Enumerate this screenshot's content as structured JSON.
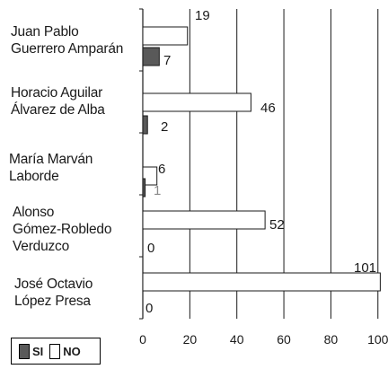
{
  "chart_data": {
    "type": "bar",
    "orientation": "horizontal",
    "categories": [
      [
        "Juan Pablo",
        "Guerrero Amparán"
      ],
      [
        "Horacio Aguilar",
        "Álvarez de Alba"
      ],
      [
        "María Marván",
        "Laborde"
      ],
      [
        "Alonso",
        "Gómez-Robledo",
        "Verduzco"
      ],
      [
        "José Octavio",
        "López Presa"
      ]
    ],
    "series": [
      {
        "name": "NO",
        "color": "#ffffff",
        "values": [
          19,
          46,
          6,
          52,
          101
        ]
      },
      {
        "name": "SI",
        "color": "#595959",
        "values": [
          7,
          2,
          1,
          0,
          0
        ]
      }
    ],
    "data_labels": {
      "NO": [
        "19",
        "46",
        "6",
        "52",
        "101"
      ],
      "SI": [
        "7",
        "2",
        "1",
        "0",
        "0"
      ]
    },
    "xlim": [
      0,
      100
    ],
    "xticks": [
      "0",
      "20",
      "40",
      "60",
      "80",
      "100"
    ],
    "grid": true,
    "legend": {
      "position": "bottom-left",
      "items": [
        "SI",
        "NO"
      ]
    }
  }
}
